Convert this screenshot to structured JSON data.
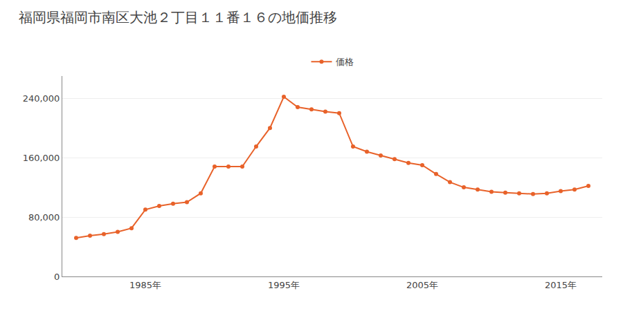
{
  "chart_data": {
    "type": "line",
    "title": "福岡県福岡市南区大池２丁目１１番１６の地価推移",
    "x": [
      1980,
      1981,
      1982,
      1983,
      1984,
      1985,
      1986,
      1987,
      1988,
      1989,
      1990,
      1991,
      1992,
      1993,
      1994,
      1995,
      1996,
      1997,
      1998,
      1999,
      2000,
      2001,
      2002,
      2003,
      2004,
      2005,
      2006,
      2007,
      2008,
      2009,
      2010,
      2011,
      2012,
      2013,
      2014,
      2015,
      2016,
      2017
    ],
    "series": [
      {
        "name": "価格",
        "color": "#E8622A",
        "marker": "circle",
        "values": [
          52000,
          55000,
          57000,
          60000,
          65000,
          90000,
          95000,
          98000,
          100000,
          112000,
          148000,
          148000,
          148000,
          175000,
          200000,
          242000,
          228000,
          225000,
          222000,
          220000,
          175000,
          168000,
          163000,
          158000,
          153000,
          150000,
          138000,
          127000,
          120000,
          117000,
          114000,
          113000,
          112000,
          111000,
          112000,
          115000,
          117000,
          122000
        ]
      }
    ],
    "xlim": [
      1979,
      2018
    ],
    "xticks": [
      {
        "value": 1985,
        "label": "1985年"
      },
      {
        "value": 1995,
        "label": "1995年"
      },
      {
        "value": 2005,
        "label": "2005年"
      },
      {
        "value": 2015,
        "label": "2015年"
      }
    ],
    "ylim": [
      0,
      270000
    ],
    "yticks": [
      0,
      {
        "value": 80000,
        "label": "80,000"
      },
      {
        "value": 160000,
        "label": "160,000"
      },
      {
        "value": 240000,
        "label": "240,000"
      }
    ],
    "grid": true,
    "legend": "top"
  }
}
